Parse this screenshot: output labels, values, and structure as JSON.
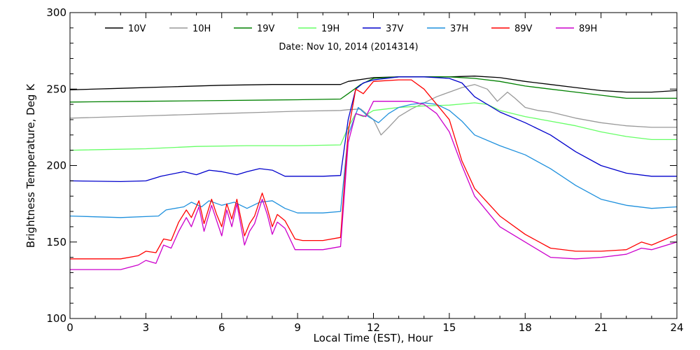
{
  "chart_data": {
    "type": "line",
    "title": "Date: Nov 10, 2014 (2014314)",
    "xlabel": "Local Time (EST), Hour",
    "ylabel": "Brightness Temperature, Deg K",
    "xlim": [
      0,
      24
    ],
    "ylim": [
      100,
      300
    ],
    "xticks": [
      0,
      3,
      6,
      9,
      12,
      15,
      18,
      21,
      24
    ],
    "yticks": [
      100,
      150,
      200,
      250,
      300
    ],
    "legend_position": "top",
    "grid": false,
    "series": [
      {
        "name": "10V",
        "color": "#000000",
        "points": [
          [
            0,
            249.5
          ],
          [
            2,
            250.5
          ],
          [
            4,
            251.5
          ],
          [
            6,
            252.5
          ],
          [
            8,
            253
          ],
          [
            10,
            253
          ],
          [
            10.7,
            253
          ],
          [
            11,
            255
          ],
          [
            12,
            257.5
          ],
          [
            13,
            258
          ],
          [
            14,
            258
          ],
          [
            15,
            258
          ],
          [
            16,
            258.5
          ],
          [
            17,
            257.5
          ],
          [
            18,
            255
          ],
          [
            19,
            253
          ],
          [
            20,
            251
          ],
          [
            21,
            249
          ],
          [
            22,
            248
          ],
          [
            23,
            248
          ],
          [
            24,
            249
          ]
        ]
      },
      {
        "name": "10H",
        "color": "#999999",
        "points": [
          [
            0,
            231
          ],
          [
            3,
            232.5
          ],
          [
            6,
            234
          ],
          [
            9,
            235.5
          ],
          [
            10.7,
            236
          ],
          [
            11,
            236.5
          ],
          [
            11.5,
            237
          ],
          [
            12,
            230
          ],
          [
            12.3,
            220
          ],
          [
            12.6,
            225
          ],
          [
            13,
            232
          ],
          [
            13.5,
            237
          ],
          [
            14,
            241
          ],
          [
            14.5,
            245
          ],
          [
            15,
            248
          ],
          [
            15.5,
            251
          ],
          [
            16,
            253
          ],
          [
            16.5,
            250
          ],
          [
            16.9,
            242
          ],
          [
            17.3,
            248
          ],
          [
            17.6,
            244
          ],
          [
            18,
            238
          ],
          [
            18.5,
            236
          ],
          [
            19,
            235
          ],
          [
            20,
            231
          ],
          [
            21,
            228
          ],
          [
            22,
            226
          ],
          [
            23,
            225
          ],
          [
            24,
            225
          ]
        ]
      },
      {
        "name": "19V",
        "color": "#008000",
        "points": [
          [
            0,
            241.5
          ],
          [
            3,
            242
          ],
          [
            6,
            242.5
          ],
          [
            9,
            243
          ],
          [
            10.7,
            243.5
          ],
          [
            11,
            247
          ],
          [
            11.5,
            253
          ],
          [
            12,
            257
          ],
          [
            13,
            258
          ],
          [
            14,
            258
          ],
          [
            15,
            258
          ],
          [
            16,
            257
          ],
          [
            17,
            255
          ],
          [
            18,
            252
          ],
          [
            19,
            250
          ],
          [
            20,
            248
          ],
          [
            21,
            246
          ],
          [
            22,
            244
          ],
          [
            23,
            244
          ],
          [
            24,
            244
          ]
        ]
      },
      {
        "name": "19H",
        "color": "#66ff66",
        "points": [
          [
            0,
            210
          ],
          [
            3,
            211
          ],
          [
            5,
            212.5
          ],
          [
            7,
            213
          ],
          [
            9,
            213
          ],
          [
            10.7,
            213.5
          ],
          [
            11,
            225
          ],
          [
            11.3,
            234
          ],
          [
            11.6,
            232
          ],
          [
            12,
            236
          ],
          [
            12.5,
            237
          ],
          [
            13,
            238
          ],
          [
            14,
            239
          ],
          [
            15,
            239.5
          ],
          [
            16,
            241
          ],
          [
            16.5,
            240
          ],
          [
            17,
            236
          ],
          [
            18,
            232
          ],
          [
            19,
            229
          ],
          [
            20,
            226
          ],
          [
            21,
            222
          ],
          [
            22,
            219
          ],
          [
            23,
            217
          ],
          [
            24,
            217
          ]
        ]
      },
      {
        "name": "37V",
        "color": "#0000cc",
        "points": [
          [
            0,
            190
          ],
          [
            2,
            189.5
          ],
          [
            3,
            190
          ],
          [
            3.6,
            193
          ],
          [
            4.5,
            196
          ],
          [
            5,
            194
          ],
          [
            5.5,
            197
          ],
          [
            6,
            196
          ],
          [
            6.6,
            194
          ],
          [
            7,
            196
          ],
          [
            7.5,
            198
          ],
          [
            8,
            197
          ],
          [
            8.5,
            193
          ],
          [
            9,
            193
          ],
          [
            10,
            193
          ],
          [
            10.7,
            193.5
          ],
          [
            11,
            230
          ],
          [
            11.3,
            250
          ],
          [
            11.6,
            254
          ],
          [
            12,
            256
          ],
          [
            13,
            258
          ],
          [
            14,
            258
          ],
          [
            15,
            257
          ],
          [
            15.5,
            254
          ],
          [
            16,
            245
          ],
          [
            17,
            235
          ],
          [
            18,
            228
          ],
          [
            19,
            220
          ],
          [
            20,
            209
          ],
          [
            21,
            200
          ],
          [
            22,
            195
          ],
          [
            23,
            193
          ],
          [
            24,
            193
          ]
        ]
      },
      {
        "name": "37H",
        "color": "#1e90dd",
        "points": [
          [
            0,
            167
          ],
          [
            2,
            166
          ],
          [
            3.5,
            167
          ],
          [
            3.8,
            171
          ],
          [
            4.5,
            173
          ],
          [
            4.8,
            176
          ],
          [
            5.2,
            173
          ],
          [
            5.5,
            177
          ],
          [
            6,
            174
          ],
          [
            6.5,
            176
          ],
          [
            7,
            172
          ],
          [
            7.5,
            176
          ],
          [
            8,
            177
          ],
          [
            8.5,
            172
          ],
          [
            9,
            169
          ],
          [
            10,
            169
          ],
          [
            10.7,
            170
          ],
          [
            11,
            220
          ],
          [
            11.4,
            238
          ],
          [
            11.8,
            232
          ],
          [
            12.2,
            228
          ],
          [
            12.6,
            234
          ],
          [
            13,
            238
          ],
          [
            13.5,
            240
          ],
          [
            14,
            241
          ],
          [
            14.5,
            240
          ],
          [
            15,
            236
          ],
          [
            15.5,
            229
          ],
          [
            16,
            220
          ],
          [
            17,
            213
          ],
          [
            18,
            207
          ],
          [
            19,
            198
          ],
          [
            20,
            187
          ],
          [
            21,
            178
          ],
          [
            22,
            174
          ],
          [
            23,
            172
          ],
          [
            24,
            173
          ]
        ]
      },
      {
        "name": "89V",
        "color": "#ff0000",
        "points": [
          [
            0,
            139
          ],
          [
            2,
            139
          ],
          [
            2.7,
            141
          ],
          [
            3,
            144
          ],
          [
            3.4,
            143
          ],
          [
            3.7,
            152
          ],
          [
            4,
            151
          ],
          [
            4.3,
            163
          ],
          [
            4.6,
            171
          ],
          [
            4.8,
            166
          ],
          [
            5.1,
            177
          ],
          [
            5.3,
            162
          ],
          [
            5.6,
            178
          ],
          [
            5.8,
            168
          ],
          [
            6,
            160
          ],
          [
            6.2,
            175
          ],
          [
            6.4,
            165
          ],
          [
            6.6,
            178
          ],
          [
            6.9,
            154
          ],
          [
            7.1,
            162
          ],
          [
            7.3,
            167
          ],
          [
            7.6,
            182
          ],
          [
            7.8,
            172
          ],
          [
            8,
            160
          ],
          [
            8.2,
            168
          ],
          [
            8.5,
            164
          ],
          [
            8.9,
            152
          ],
          [
            9.2,
            151
          ],
          [
            10,
            151
          ],
          [
            10.7,
            153
          ],
          [
            11,
            222
          ],
          [
            11.3,
            250
          ],
          [
            11.6,
            247
          ],
          [
            12,
            255
          ],
          [
            13,
            256
          ],
          [
            13.5,
            256
          ],
          [
            14,
            250
          ],
          [
            14.5,
            240
          ],
          [
            15,
            230
          ],
          [
            15.5,
            203
          ],
          [
            16,
            185
          ],
          [
            17,
            167
          ],
          [
            18,
            155
          ],
          [
            19,
            146
          ],
          [
            20,
            144
          ],
          [
            21,
            144
          ],
          [
            22,
            145
          ],
          [
            22.6,
            150
          ],
          [
            23,
            148
          ],
          [
            24,
            155
          ]
        ]
      },
      {
        "name": "89H",
        "color": "#cc00cc",
        "points": [
          [
            0,
            132
          ],
          [
            2,
            132
          ],
          [
            2.7,
            135
          ],
          [
            3,
            138
          ],
          [
            3.4,
            136
          ],
          [
            3.7,
            148
          ],
          [
            4,
            146
          ],
          [
            4.3,
            157
          ],
          [
            4.6,
            166
          ],
          [
            4.8,
            160
          ],
          [
            5.1,
            173
          ],
          [
            5.3,
            157
          ],
          [
            5.6,
            174
          ],
          [
            5.8,
            164
          ],
          [
            6,
            154
          ],
          [
            6.2,
            171
          ],
          [
            6.4,
            160
          ],
          [
            6.6,
            175
          ],
          [
            6.9,
            148
          ],
          [
            7.1,
            157
          ],
          [
            7.3,
            162
          ],
          [
            7.6,
            178
          ],
          [
            7.8,
            168
          ],
          [
            8,
            155
          ],
          [
            8.2,
            163
          ],
          [
            8.5,
            159
          ],
          [
            8.9,
            145
          ],
          [
            9.2,
            145
          ],
          [
            10,
            145
          ],
          [
            10.7,
            147
          ],
          [
            11,
            215
          ],
          [
            11.3,
            234
          ],
          [
            11.7,
            232
          ],
          [
            12,
            242
          ],
          [
            13,
            242
          ],
          [
            13.5,
            242
          ],
          [
            14,
            240
          ],
          [
            14.5,
            234
          ],
          [
            15,
            222
          ],
          [
            15.5,
            200
          ],
          [
            16,
            180
          ],
          [
            17,
            160
          ],
          [
            18,
            150
          ],
          [
            19,
            140
          ],
          [
            20,
            139
          ],
          [
            21,
            140
          ],
          [
            22,
            142
          ],
          [
            22.6,
            146
          ],
          [
            23,
            145
          ],
          [
            24,
            150
          ]
        ]
      }
    ]
  }
}
